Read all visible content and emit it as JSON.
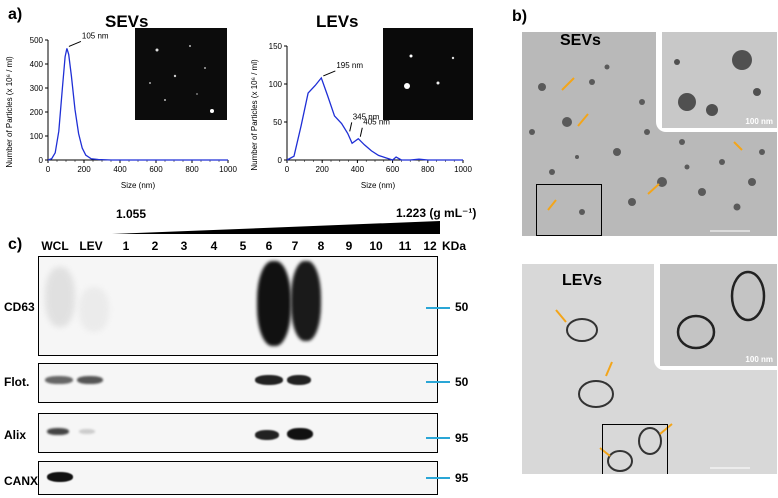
{
  "panel_labels": {
    "a": "a)",
    "b": "b)",
    "c": "c)"
  },
  "colors": {
    "line": "#1f2fd6",
    "marker": "#2aa6d6",
    "arrow": "#f3a51a"
  },
  "chart_data": [
    {
      "type": "line",
      "title": "SEVs",
      "xlabel": "Size (nm)",
      "ylabel": "Number of Particles (x 10⁶ / ml)",
      "xlim": [
        0,
        1000
      ],
      "ylim": [
        0,
        500
      ],
      "xticks": [
        "0",
        "200",
        "400",
        "600",
        "800",
        "1000"
      ],
      "yticks": [
        "0",
        "100",
        "200",
        "300",
        "400",
        "500"
      ],
      "x": [
        0,
        20,
        40,
        60,
        80,
        95,
        105,
        115,
        130,
        150,
        170,
        190,
        210,
        240,
        280,
        350,
        450,
        600,
        800,
        1000
      ],
      "y": [
        0,
        5,
        30,
        120,
        300,
        430,
        465,
        440,
        350,
        210,
        110,
        50,
        20,
        5,
        2,
        0,
        0,
        0,
        0,
        0
      ],
      "annotations": [
        {
          "text": "105 nm",
          "x": 105,
          "y": 465
        }
      ]
    },
    {
      "type": "line",
      "title": "LEVs",
      "xlabel": "Size (nm)",
      "ylabel": "Number of Particles (x 10⁶ / ml)",
      "xlim": [
        0,
        1000
      ],
      "ylim": [
        0,
        150
      ],
      "xticks": [
        "0",
        "200",
        "400",
        "600",
        "800",
        "1000"
      ],
      "yticks": [
        "0",
        "50",
        "100",
        "150"
      ],
      "x": [
        0,
        40,
        80,
        120,
        160,
        195,
        230,
        270,
        310,
        345,
        370,
        405,
        440,
        480,
        520,
        560,
        600,
        620,
        650,
        700,
        750,
        800,
        850,
        900,
        1000
      ],
      "y": [
        0,
        5,
        45,
        88,
        98,
        108,
        85,
        58,
        48,
        35,
        22,
        28,
        20,
        12,
        6,
        3,
        0,
        4,
        0,
        0,
        1,
        0,
        0,
        0,
        0
      ],
      "annotations": [
        {
          "text": "195 nm",
          "x": 195,
          "y": 108
        },
        {
          "text": "345 nm",
          "x": 345,
          "y": 35
        },
        {
          "text": "405 nm",
          "x": 405,
          "y": 28
        }
      ]
    }
  ],
  "microscopy": {
    "sevs_title": "SEVs",
    "levs_title": "LEVs",
    "sevs_inset_scale": "100 nm",
    "levs_inset_scale": "100 nm"
  },
  "gradient": {
    "start": "1.055",
    "end": "1.223 (g mL⁻¹)"
  },
  "blot": {
    "lanes": [
      "WCL",
      "LEV",
      "1",
      "2",
      "3",
      "4",
      "5",
      "6",
      "7",
      "8",
      "9",
      "10",
      "11",
      "12"
    ],
    "kda_label": "KDa",
    "rows": [
      {
        "label": "CD63",
        "kda": "50"
      },
      {
        "label": "Flot.",
        "kda": "50"
      },
      {
        "label": "Alix",
        "kda": "95"
      },
      {
        "label": "CANX",
        "kda": "95"
      }
    ]
  }
}
